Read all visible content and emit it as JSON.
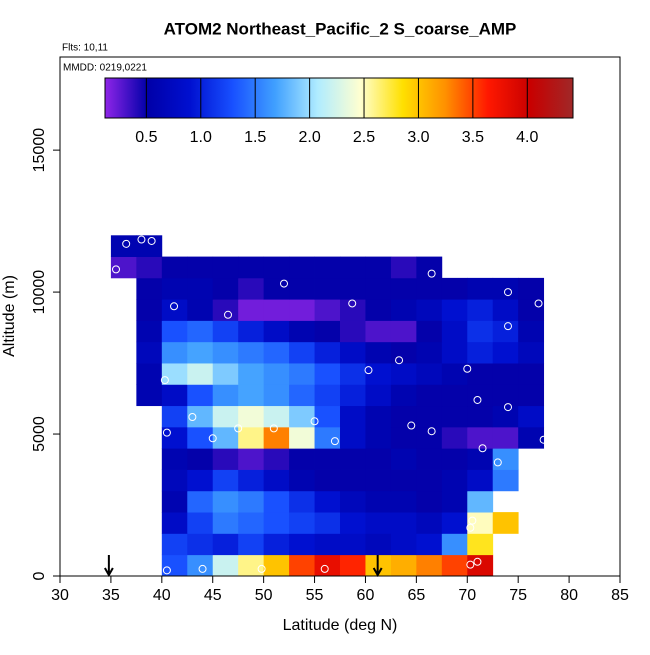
{
  "chart_data": {
    "type": "heatmap",
    "title": "ATOM2 Northeast_Pacific_2 S_coarse_AMP",
    "subtitle": "Flts: 10,11",
    "annotation": "MMDD: 0219,0221",
    "x_label": "Latitude (deg N)",
    "y_label": "Altitude (m)",
    "xlim": [
      30,
      85
    ],
    "ylim": [
      0,
      18280
    ],
    "xticks": [
      30,
      35,
      40,
      45,
      50,
      55,
      60,
      65,
      70,
      75,
      80,
      85
    ],
    "yticks": [
      0,
      5000,
      10000,
      15000
    ],
    "x_edges": [
      35,
      37.5,
      40,
      42.5,
      45,
      47.5,
      50,
      52.5,
      55,
      57.5,
      60,
      62.5,
      65,
      67.5,
      70,
      72.5,
      75,
      77.5,
      80
    ],
    "y_edges": [
      0,
      750,
      1500,
      2250,
      3000,
      3750,
      4500,
      5250,
      6000,
      6750,
      7500,
      8250,
      9000,
      9750,
      10500,
      11250,
      12000
    ],
    "z": [
      [
        null,
        null,
        1.3,
        1.6,
        2.2,
        2.6,
        3.0,
        3.5,
        3.8,
        3.6,
        3.0,
        3.1,
        3.3,
        3.5,
        3.9,
        null,
        null,
        null
      ],
      [
        null,
        null,
        1.2,
        1.1,
        1.0,
        1.2,
        1.0,
        0.9,
        0.8,
        0.8,
        0.7,
        0.8,
        0.9,
        1.6,
        2.8,
        null,
        null,
        null
      ],
      [
        null,
        null,
        0.8,
        1.2,
        1.5,
        1.4,
        1.3,
        1.2,
        1.1,
        0.9,
        0.8,
        0.8,
        0.7,
        0.9,
        2.5,
        3.0,
        null,
        null
      ],
      [
        null,
        null,
        0.6,
        1.4,
        1.6,
        1.5,
        1.3,
        1.1,
        0.9,
        0.7,
        0.6,
        0.6,
        0.5,
        0.6,
        1.8,
        null,
        null,
        null
      ],
      [
        null,
        null,
        0.7,
        0.9,
        1.2,
        1.0,
        0.8,
        0.6,
        0.5,
        0.5,
        0.5,
        0.5,
        0.5,
        0.6,
        0.8,
        1.5,
        null,
        null
      ],
      [
        null,
        null,
        0.6,
        0.5,
        0.4,
        0.3,
        0.4,
        0.5,
        0.5,
        0.5,
        0.5,
        0.6,
        0.5,
        0.5,
        0.6,
        1.6,
        null,
        null
      ],
      [
        null,
        null,
        0.9,
        1.3,
        1.8,
        2.6,
        3.3,
        2.4,
        1.5,
        0.8,
        0.6,
        0.5,
        0.5,
        0.4,
        0.3,
        0.3,
        0.6,
        null
      ],
      [
        null,
        null,
        1.2,
        1.8,
        2.2,
        2.4,
        2.2,
        1.9,
        1.3,
        0.8,
        0.6,
        0.5,
        0.5,
        0.5,
        0.5,
        0.6,
        0.8,
        null
      ],
      [
        null,
        0.6,
        0.8,
        1.3,
        1.6,
        1.7,
        1.6,
        1.4,
        1.2,
        1.0,
        0.8,
        0.6,
        0.5,
        0.5,
        0.5,
        0.5,
        0.5,
        null
      ],
      [
        null,
        0.6,
        2.0,
        2.2,
        1.9,
        1.7,
        1.6,
        1.5,
        1.3,
        1.1,
        0.9,
        0.8,
        0.7,
        0.6,
        0.5,
        0.5,
        0.5,
        null
      ],
      [
        null,
        0.7,
        1.6,
        1.7,
        1.6,
        1.5,
        1.4,
        1.2,
        1.0,
        0.8,
        0.6,
        0.5,
        0.6,
        0.8,
        1.0,
        0.9,
        0.7,
        null
      ],
      [
        null,
        0.6,
        1.3,
        1.4,
        1.2,
        1.0,
        0.8,
        0.6,
        0.5,
        0.4,
        0.3,
        0.3,
        0.5,
        0.8,
        1.1,
        1.0,
        0.6,
        null
      ],
      [
        null,
        0.5,
        0.8,
        0.6,
        0.4,
        0.2,
        0.2,
        0.2,
        0.3,
        0.4,
        0.5,
        0.6,
        0.7,
        0.9,
        1.0,
        0.8,
        0.5,
        null
      ],
      [
        null,
        0.5,
        0.6,
        0.6,
        0.5,
        0.4,
        0.5,
        0.5,
        0.5,
        0.5,
        0.5,
        0.5,
        0.5,
        0.5,
        0.6,
        0.6,
        0.5,
        null
      ],
      [
        0.3,
        0.4,
        0.5,
        0.5,
        0.5,
        0.5,
        0.5,
        0.5,
        0.5,
        0.5,
        0.5,
        0.4,
        0.5,
        null,
        null,
        null,
        null,
        null
      ],
      [
        0.6,
        0.6,
        null,
        null,
        null,
        null,
        null,
        null,
        null,
        null,
        null,
        null,
        null,
        null,
        null,
        null,
        null,
        null
      ]
    ],
    "clim": [
      0.12,
      4.42
    ],
    "colormap": [
      "#8f25e8",
      "#0000a8",
      "#0010d0",
      "#1850ff",
      "#40a0ff",
      "#b0ecff",
      "#ffffd0",
      "#ffe000",
      "#ff9000",
      "#ff1800",
      "#c80000",
      "#a02828"
    ],
    "cbar_ticks": [
      0.5,
      {
        "value": 1.0,
        "label": "1.0"
      },
      1.5,
      {
        "value": 2.0,
        "label": "2.0"
      },
      2.5,
      {
        "value": 3.0,
        "label": "3.0"
      },
      3.5,
      {
        "value": 4.0,
        "label": "4.0"
      }
    ],
    "points": {
      "x": [
        35.5,
        36.5,
        38,
        39,
        52,
        66.5,
        74,
        77,
        78,
        41.2,
        46.5,
        58.7,
        74,
        63.3,
        60.3,
        70,
        40.3,
        71,
        74,
        80,
        43,
        55,
        47.5,
        51,
        64.5,
        66.5,
        40.5,
        45,
        57,
        71.5,
        73,
        77.5,
        70.5,
        70.3,
        71,
        70.3,
        40.5,
        44,
        49.8,
        56
      ],
      "y": [
        10800,
        11700,
        11850,
        11800,
        10300,
        10650,
        10000,
        9600,
        9600,
        9500,
        9200,
        9600,
        8800,
        7600,
        7250,
        7300,
        6900,
        6200,
        5950,
        5900,
        5600,
        5450,
        5200,
        5200,
        5300,
        5100,
        5050,
        4850,
        4750,
        4500,
        4000,
        4800,
        1950,
        1700,
        500,
        400,
        200,
        250,
        250,
        250
      ]
    },
    "arrows": [
      34.8,
      61.2
    ]
  }
}
